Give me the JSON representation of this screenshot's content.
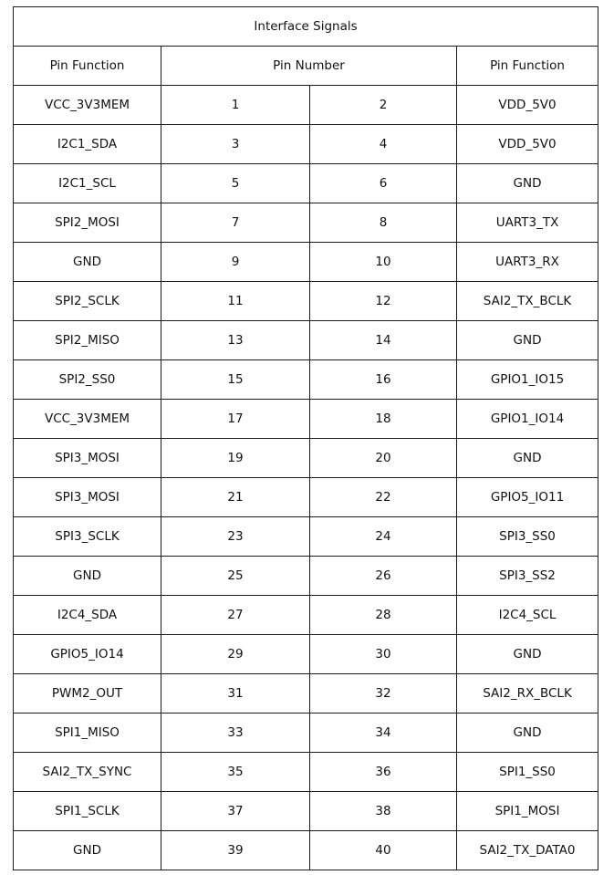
{
  "title": "Interface Signals",
  "headers": {
    "left": "Pin Function",
    "middle": "Pin Number",
    "right": "Pin Function"
  },
  "rows": [
    [
      "VCC_3V3MEM",
      "1",
      "2",
      "VDD_5V0"
    ],
    [
      "I2C1_SDA",
      "3",
      "4",
      "VDD_5V0"
    ],
    [
      "I2C1_SCL",
      "5",
      "6",
      "GND"
    ],
    [
      "SPI2_MOSI",
      "7",
      "8",
      "UART3_TX"
    ],
    [
      "GND",
      "9",
      "10",
      "UART3_RX"
    ],
    [
      "SPI2_SCLK",
      "11",
      "12",
      "SAI2_TX_BCLK"
    ],
    [
      "SPI2_MISO",
      "13",
      "14",
      "GND"
    ],
    [
      "SPI2_SS0",
      "15",
      "16",
      "GPIO1_IO15"
    ],
    [
      "VCC_3V3MEM",
      "17",
      "18",
      "GPIO1_IO14"
    ],
    [
      "SPI3_MOSI",
      "19",
      "20",
      "GND"
    ],
    [
      "SPI3_MOSI",
      "21",
      "22",
      "GPIO5_IO11"
    ],
    [
      "SPI3_SCLK",
      "23",
      "24",
      "SPI3_SS0"
    ],
    [
      "GND",
      "25",
      "26",
      "SPI3_SS2"
    ],
    [
      "I2C4_SDA",
      "27",
      "28",
      "I2C4_SCL"
    ],
    [
      "GPIO5_IO14",
      "29",
      "30",
      "GND"
    ],
    [
      "PWM2_OUT",
      "31",
      "32",
      "SAI2_RX_BCLK"
    ],
    [
      "SPI1_MISO",
      "33",
      "34",
      "GND"
    ],
    [
      "SAI2_TX_SYNC",
      "35",
      "36",
      "SPI1_SS0"
    ],
    [
      "SPI1_SCLK",
      "37",
      "38",
      "SPI1_MOSI"
    ],
    [
      "GND",
      "39",
      "40",
      "SAI2_TX_DATA0"
    ]
  ]
}
